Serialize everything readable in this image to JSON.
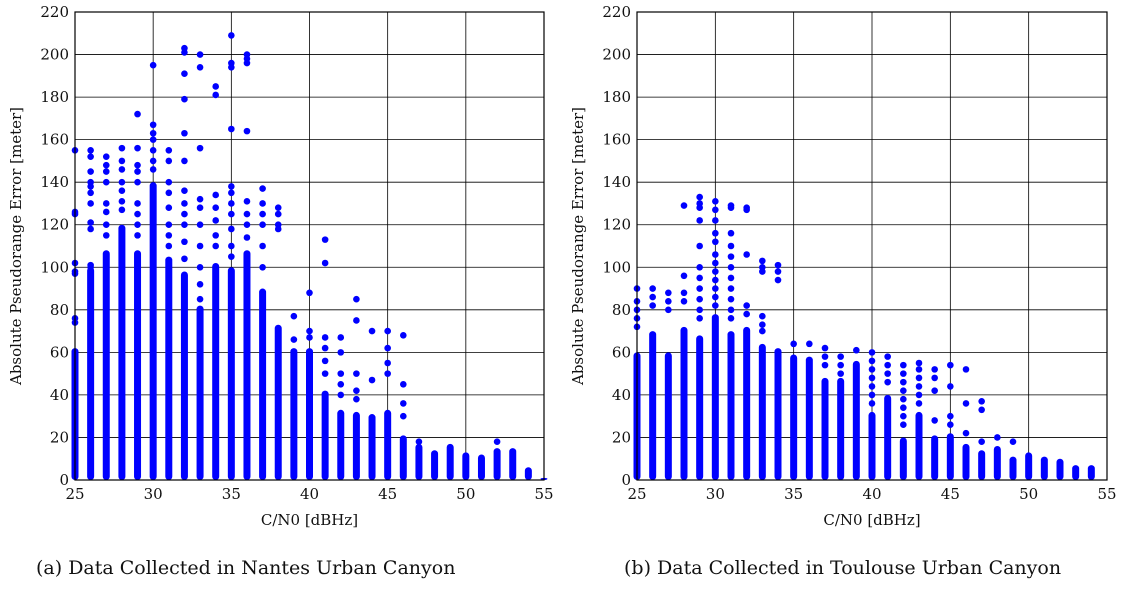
{
  "chart_data": [
    {
      "type": "scatter",
      "xlabel": "C/N0 [dBHz]",
      "ylabel": "Absolute Pseudorange Error [meter]",
      "xlim": [
        25,
        55
      ],
      "ylim": [
        0,
        220
      ],
      "xticks": [
        25,
        30,
        35,
        40,
        45,
        50,
        55
      ],
      "yticks": [
        0,
        20,
        40,
        60,
        80,
        100,
        120,
        140,
        160,
        180,
        200,
        220
      ],
      "grid": true,
      "marker_color": "#0000ff",
      "caption": "(a) Data Collected in Nantes Urban Canyon",
      "columns": [
        {
          "x": 25,
          "dense_max": 62,
          "points": [
            155,
            126,
            125,
            102,
            98,
            97,
            76,
            74
          ]
        },
        {
          "x": 26,
          "dense_max": 100,
          "points": [
            155,
            152,
            145,
            140,
            138,
            135,
            130,
            121,
            118,
            101,
            100
          ]
        },
        {
          "x": 27,
          "dense_max": 108,
          "points": [
            152,
            148,
            145,
            140,
            130,
            126,
            120,
            115
          ]
        },
        {
          "x": 28,
          "dense_max": 120,
          "points": [
            156,
            150,
            146,
            140,
            136,
            131,
            127
          ]
        },
        {
          "x": 29,
          "dense_max": 108,
          "points": [
            172,
            156,
            148,
            145,
            140,
            130,
            125,
            120,
            115
          ]
        },
        {
          "x": 30,
          "dense_max": 140,
          "points": [
            195,
            167,
            163,
            160,
            155,
            150,
            146
          ]
        },
        {
          "x": 31,
          "dense_max": 105,
          "points": [
            155,
            150,
            140,
            135,
            128,
            120,
            115,
            110
          ]
        },
        {
          "x": 32,
          "dense_max": 98,
          "points": [
            203,
            201,
            191,
            179,
            163,
            150,
            136,
            130,
            125,
            120,
            112,
            104
          ]
        },
        {
          "x": 33,
          "dense_max": 82,
          "points": [
            200,
            194,
            156,
            132,
            128,
            120,
            110,
            100,
            92,
            85
          ]
        },
        {
          "x": 34,
          "dense_max": 102,
          "points": [
            185,
            181,
            134,
            128,
            122,
            115,
            110
          ]
        },
        {
          "x": 35,
          "dense_max": 100,
          "points": [
            209,
            196,
            194,
            165,
            138,
            135,
            130,
            125,
            118,
            110,
            105
          ]
        },
        {
          "x": 36,
          "dense_max": 108,
          "points": [
            200,
            198,
            196,
            164,
            131,
            125,
            120,
            114
          ]
        },
        {
          "x": 37,
          "dense_max": 90,
          "points": [
            137,
            130,
            125,
            120,
            110,
            100
          ]
        },
        {
          "x": 38,
          "dense_max": 73,
          "points": [
            128,
            125,
            120,
            118
          ]
        },
        {
          "x": 39,
          "dense_max": 62,
          "points": [
            77,
            66
          ]
        },
        {
          "x": 40,
          "dense_max": 62,
          "points": [
            88,
            70,
            67
          ]
        },
        {
          "x": 41,
          "dense_max": 42,
          "points": [
            113,
            102,
            67,
            62,
            56,
            50
          ]
        },
        {
          "x": 42,
          "dense_max": 33,
          "points": [
            67,
            60,
            50,
            45,
            40
          ]
        },
        {
          "x": 43,
          "dense_max": 32,
          "points": [
            85,
            75,
            50,
            42,
            38
          ]
        },
        {
          "x": 44,
          "dense_max": 31,
          "points": [
            70,
            47
          ]
        },
        {
          "x": 45,
          "dense_max": 33,
          "points": [
            70,
            62,
            55,
            50
          ]
        },
        {
          "x": 46,
          "dense_max": 21,
          "points": [
            68,
            45,
            36,
            30
          ]
        },
        {
          "x": 47,
          "dense_max": 17,
          "points": [
            18
          ]
        },
        {
          "x": 48,
          "dense_max": 14,
          "points": []
        },
        {
          "x": 49,
          "dense_max": 17,
          "points": []
        },
        {
          "x": 50,
          "dense_max": 13,
          "points": []
        },
        {
          "x": 51,
          "dense_max": 12,
          "points": []
        },
        {
          "x": 52,
          "dense_max": 15,
          "points": [
            18
          ]
        },
        {
          "x": 53,
          "dense_max": 15,
          "points": []
        },
        {
          "x": 54,
          "dense_max": 6,
          "points": []
        },
        {
          "x": 55,
          "dense_max": 1,
          "points": []
        }
      ]
    },
    {
      "type": "scatter",
      "xlabel": "C/N0 [dBHz]",
      "ylabel": "Absolute Pseudorange Error [meter]",
      "xlim": [
        25,
        55
      ],
      "ylim": [
        0,
        220
      ],
      "xticks": [
        25,
        30,
        35,
        40,
        45,
        50,
        55
      ],
      "yticks": [
        0,
        20,
        40,
        60,
        80,
        100,
        120,
        140,
        160,
        180,
        200,
        220
      ],
      "grid": true,
      "marker_color": "#0000ff",
      "caption": "(b) Data Collected in Toulouse Urban Canyon",
      "columns": [
        {
          "x": 25,
          "dense_max": 60,
          "points": [
            90,
            84,
            80,
            76,
            72
          ]
        },
        {
          "x": 26,
          "dense_max": 70,
          "points": [
            90,
            86,
            82
          ]
        },
        {
          "x": 27,
          "dense_max": 60,
          "points": [
            88,
            84,
            80
          ]
        },
        {
          "x": 28,
          "dense_max": 72,
          "points": [
            129,
            96,
            88,
            84
          ]
        },
        {
          "x": 29,
          "dense_max": 68,
          "points": [
            133,
            130,
            128,
            122,
            110,
            100,
            95,
            90,
            85,
            80,
            76
          ]
        },
        {
          "x": 30,
          "dense_max": 78,
          "points": [
            131,
            127,
            122,
            116,
            112,
            106,
            102,
            98,
            94,
            90,
            86,
            82
          ]
        },
        {
          "x": 31,
          "dense_max": 70,
          "points": [
            129,
            128,
            116,
            110,
            105,
            100,
            95,
            90,
            85,
            80,
            76
          ]
        },
        {
          "x": 32,
          "dense_max": 72,
          "points": [
            128,
            127,
            106,
            82,
            78
          ]
        },
        {
          "x": 33,
          "dense_max": 64,
          "points": [
            103,
            100,
            98,
            77,
            73,
            70
          ]
        },
        {
          "x": 34,
          "dense_max": 62,
          "points": [
            101,
            98,
            94
          ]
        },
        {
          "x": 35,
          "dense_max": 59,
          "points": [
            64
          ]
        },
        {
          "x": 36,
          "dense_max": 58,
          "points": [
            64
          ]
        },
        {
          "x": 37,
          "dense_max": 48,
          "points": [
            62,
            58,
            54
          ]
        },
        {
          "x": 38,
          "dense_max": 48,
          "points": [
            58,
            54,
            50
          ]
        },
        {
          "x": 39,
          "dense_max": 56,
          "points": [
            61
          ]
        },
        {
          "x": 40,
          "dense_max": 32,
          "points": [
            60,
            56,
            52,
            48,
            44,
            40,
            36
          ]
        },
        {
          "x": 41,
          "dense_max": 40,
          "points": [
            58,
            54,
            50,
            46
          ]
        },
        {
          "x": 42,
          "dense_max": 20,
          "points": [
            54,
            50,
            46,
            42,
            38,
            34,
            30,
            26
          ]
        },
        {
          "x": 43,
          "dense_max": 32,
          "points": [
            55,
            52,
            48,
            44,
            40,
            36
          ]
        },
        {
          "x": 44,
          "dense_max": 21,
          "points": [
            52,
            48,
            42,
            28
          ]
        },
        {
          "x": 45,
          "dense_max": 22,
          "points": [
            54,
            44,
            30,
            26
          ]
        },
        {
          "x": 46,
          "dense_max": 17,
          "points": [
            52,
            36,
            22
          ]
        },
        {
          "x": 47,
          "dense_max": 14,
          "points": [
            37,
            33,
            18
          ]
        },
        {
          "x": 48,
          "dense_max": 16,
          "points": [
            20
          ]
        },
        {
          "x": 49,
          "dense_max": 11,
          "points": [
            18
          ]
        },
        {
          "x": 50,
          "dense_max": 13,
          "points": []
        },
        {
          "x": 51,
          "dense_max": 11,
          "points": []
        },
        {
          "x": 52,
          "dense_max": 10,
          "points": []
        },
        {
          "x": 53,
          "dense_max": 7,
          "points": []
        },
        {
          "x": 54,
          "dense_max": 7,
          "points": []
        }
      ]
    }
  ]
}
